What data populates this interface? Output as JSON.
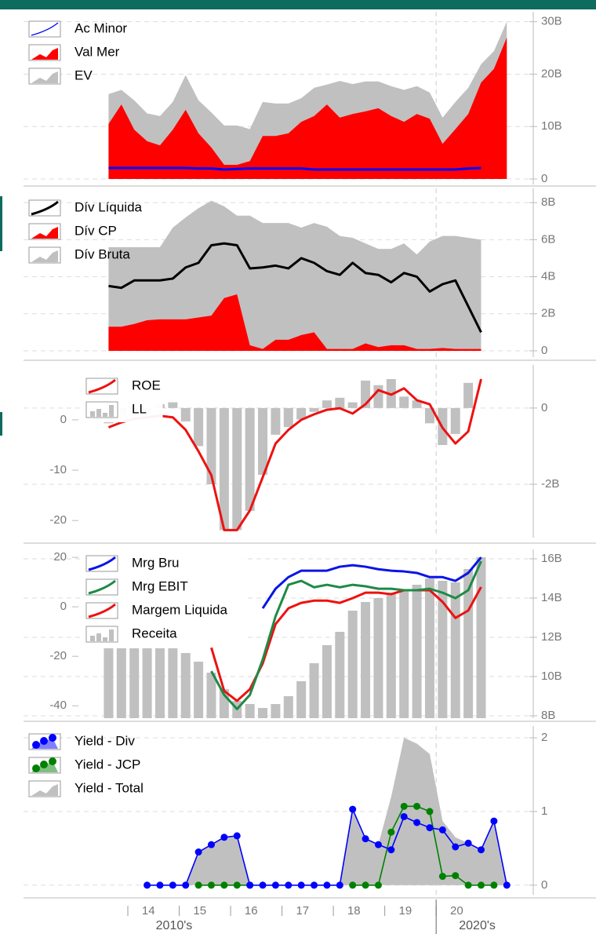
{
  "chart_data": {
    "type": "panels",
    "x": [
      2013.625,
      2013.875,
      2014.125,
      2014.375,
      2014.625,
      2014.875,
      2015.125,
      2015.375,
      2015.625,
      2015.875,
      2016.125,
      2016.375,
      2016.625,
      2016.875,
      2017.125,
      2017.375,
      2017.625,
      2017.875,
      2018.125,
      2018.375,
      2018.625,
      2018.875,
      2019.125,
      2019.375,
      2019.625,
      2019.875,
      2020.125,
      2020.375,
      2020.625,
      2020.875,
      2021.125,
      2021.375
    ],
    "xlim": [
      2011.97,
      2021.89
    ],
    "xticks": [
      {
        "value": 2014,
        "label": "14"
      },
      {
        "value": 2015,
        "label": "15"
      },
      {
        "value": 2016,
        "label": "16"
      },
      {
        "value": 2017,
        "label": "17"
      },
      {
        "value": 2018,
        "label": "18"
      },
      {
        "value": 2019,
        "label": "19"
      },
      {
        "value": 2020,
        "label": "20"
      }
    ],
    "decades": [
      {
        "value": 2014.9,
        "label": "2010's"
      },
      {
        "value": 2020.8,
        "label": "2020's"
      }
    ],
    "separator": 2020,
    "panels": [
      {
        "type": "area-line",
        "y2lim": [
          -1.05,
          31.9
        ],
        "y2ticks": [
          0,
          {
            "value": 10,
            "label": "10B"
          },
          {
            "value": 20,
            "label": "20B"
          },
          {
            "value": 30,
            "label": "30B"
          }
        ],
        "series": [
          {
            "name": "Ac Minor",
            "type": "line",
            "axis": "y2",
            "color": "#0000ff",
            "values": [
              2.1,
              2.1,
              2.1,
              2.1,
              2.1,
              2.1,
              2.1,
              2.0,
              2.0,
              1.8,
              1.9,
              2.0,
              2.0,
              2.0,
              2.0,
              2.0,
              1.8,
              1.8,
              1.8,
              1.8,
              1.8,
              1.8,
              1.8,
              1.8,
              1.8,
              1.8,
              1.8,
              1.8,
              2.0,
              2.1,
              null,
              null
            ]
          },
          {
            "name": "Val Mer",
            "type": "area",
            "axis": "y2",
            "color": "#ff0000",
            "values": [
              10.5,
              14.2,
              9.4,
              7.2,
              6.4,
              9.4,
              13.2,
              8.7,
              6,
              2.7,
              2.7,
              3.4,
              8.2,
              8.2,
              8.7,
              10.9,
              12,
              14.2,
              11.7,
              12.4,
              12.9,
              13.5,
              12,
              10.9,
              12.4,
              11.5,
              6.7,
              9.5,
              12.4,
              18.4,
              21,
              27
            ]
          },
          {
            "name": "EV",
            "type": "area",
            "axis": "y2",
            "color": "#c0c0c0",
            "values": [
              16.2,
              17,
              15,
              12.5,
              12,
              14.7,
              19.8,
              15,
              12.7,
              10.2,
              10.2,
              9.5,
              14.7,
              14.4,
              14.4,
              15.4,
              17.4,
              18,
              18.7,
              18.1,
              18.6,
              18.6,
              17.7,
              17,
              17.7,
              16.5,
              11.7,
              14.7,
              17.4,
              21.9,
              24.4,
              30
            ]
          }
        ]
      },
      {
        "type": "area-line",
        "y2lim": [
          -0.34,
          8.77
        ],
        "y2ticks": [
          0,
          {
            "value": 2,
            "label": "2B"
          },
          {
            "value": 4,
            "label": "4B"
          },
          {
            "value": 6,
            "label": "6B"
          },
          {
            "value": 8,
            "label": "8B"
          }
        ],
        "series": [
          {
            "name": "Dív Líquida",
            "type": "line",
            "axis": "y2",
            "color": "#000000",
            "values": [
              3.5,
              3.4,
              3.8,
              3.8,
              3.8,
              3.9,
              4.5,
              4.75,
              5.7,
              5.8,
              5.7,
              4.45,
              4.5,
              4.6,
              4.45,
              5.0,
              4.75,
              4.3,
              4.1,
              4.75,
              4.2,
              4.1,
              3.7,
              4.2,
              4.0,
              3.2,
              3.6,
              3.8,
              2.4,
              1.0,
              null,
              null
            ]
          },
          {
            "name": "Dív CP",
            "type": "area",
            "axis": "y2",
            "color": "#ff0000",
            "values": [
              1.3,
              1.3,
              1.45,
              1.65,
              1.7,
              1.7,
              1.7,
              1.8,
              1.9,
              2.85,
              3.05,
              0.3,
              0.1,
              0.6,
              0.6,
              0.85,
              1.0,
              0.1,
              0.1,
              0.1,
              0.4,
              0.2,
              0.3,
              0.3,
              0.1,
              0.1,
              0.15,
              0.1,
              0.1,
              0.1,
              null,
              null
            ]
          },
          {
            "name": "Dív Bruta",
            "type": "area",
            "axis": "y2",
            "color": "#c0c0c0",
            "values": [
              5.6,
              5.6,
              5.6,
              5.6,
              5.6,
              6.65,
              7.2,
              7.7,
              8.1,
              7.8,
              7.3,
              7.3,
              6.9,
              6.9,
              6.9,
              6.65,
              6.9,
              6.7,
              6.2,
              6.1,
              5.8,
              5.5,
              5.5,
              5.8,
              5.2,
              5.9,
              6.2,
              6.2,
              6.1,
              6.0,
              null,
              null
            ]
          }
        ]
      },
      {
        "type": "bar-line",
        "ylim": [
          -23.4,
          10.9
        ],
        "yticks": [
          0,
          -10,
          -20
        ],
        "y2lim": [
          -3.4,
          1.13
        ],
        "y2ticks": [
          0,
          {
            "value": -2,
            "label": "-2B"
          }
        ],
        "series": [
          {
            "name": "ROE",
            "type": "line",
            "axis": "y",
            "color": "#ee1111",
            "values": [
              -1.5,
              -0.5,
              0.2,
              0.5,
              0.8,
              0.5,
              -2,
              -6.25,
              -11,
              -21.9,
              -21.9,
              -18,
              -11.4,
              -4.7,
              -2,
              0,
              1.1,
              2,
              2.3,
              1.25,
              3.1,
              5.9,
              5,
              6.25,
              3.9,
              3.1,
              -1.6,
              -4.7,
              -2.3,
              8.1,
              null,
              null
            ]
          },
          {
            "name": "LL",
            "type": "bar",
            "axis": "y2",
            "color": "#c0c0c0",
            "values": [
              -0.4,
              -0.2,
              -0.2,
              -0.1,
              0.1,
              0.15,
              -0.35,
              -1.0,
              -2.0,
              -3.2,
              -3.2,
              -2.7,
              -1.75,
              -0.7,
              -0.5,
              -0.3,
              -0.1,
              0.2,
              0.27,
              0.15,
              0.72,
              0.6,
              0.76,
              0.3,
              0.2,
              -0.4,
              -0.97,
              -0.68,
              0.66,
              null,
              null,
              null
            ]
          }
        ]
      },
      {
        "type": "bar-line",
        "ylim": [
          -45,
          23.2
        ],
        "yticks": [
          20,
          0,
          -20,
          -40
        ],
        "y2lim": [
          7.88,
          16.48
        ],
        "y2ticks": [
          {
            "value": 16,
            "label": "16B"
          },
          {
            "value": 14,
            "label": "14B"
          },
          {
            "value": 12,
            "label": "12B"
          },
          {
            "value": 10,
            "label": "10B"
          },
          {
            "value": 8,
            "label": "8B"
          }
        ],
        "series": [
          {
            "name": "Mrg Bru",
            "type": "line",
            "axis": "y",
            "color": "#0a14e6",
            "values": [
              null,
              null,
              null,
              null,
              null,
              null,
              null,
              null,
              null,
              null,
              null,
              null,
              -0.6,
              7.3,
              12,
              14.6,
              14.6,
              14.6,
              16.2,
              16.8,
              16.2,
              15.2,
              14.6,
              14.3,
              13.7,
              12,
              12,
              10.5,
              13.7,
              20,
              null,
              null
            ]
          },
          {
            "name": "Mrg EBIT",
            "type": "line",
            "axis": "y",
            "color": "#1e8a46",
            "values": [
              null,
              null,
              null,
              null,
              null,
              null,
              null,
              null,
              -26,
              -35.6,
              -41.3,
              -35.6,
              -21.3,
              -3.8,
              8.9,
              10.5,
              7.9,
              8.9,
              7.9,
              8.9,
              8.3,
              7.3,
              7.3,
              6.7,
              6.7,
              7.3,
              5.7,
              3.5,
              6.7,
              18.4,
              null,
              null
            ]
          },
          {
            "name": "Margem Liquida",
            "type": "line",
            "axis": "y",
            "color": "#ee1111",
            "values": [
              null,
              null,
              null,
              null,
              null,
              null,
              null,
              null,
              -16.5,
              -34,
              -38,
              -33.3,
              -22.9,
              -7,
              -0.6,
              1.6,
              2.5,
              2.5,
              1.6,
              3.5,
              5.7,
              5.7,
              5.1,
              6.7,
              6.7,
              6.7,
              2,
              -4.5,
              -1.5,
              8,
              null,
              null
            ]
          },
          {
            "name": "Receita",
            "type": "bar",
            "axis": "y2",
            "color": "#c0c0c0",
            "values": [
              11.44,
              11.44,
              11.44,
              11.44,
              11.44,
              11.44,
              11.2,
              10.76,
              10.2,
              9.36,
              8.76,
              8.6,
              8.4,
              8.6,
              9.0,
              9.76,
              10.68,
              11.6,
              12.28,
              13.36,
              13.8,
              14.0,
              14.28,
              14.36,
              14.68,
              15.0,
              14.88,
              14.8,
              15.48,
              16.08,
              null,
              null
            ]
          }
        ]
      },
      {
        "type": "points-area",
        "y2lim": [
          -0.13,
          2.16
        ],
        "y2ticks": [
          0,
          1,
          2
        ],
        "series": [
          {
            "name": "Yield - Div",
            "type": "points",
            "axis": "y2",
            "color": "#0000ff",
            "values": [
              null,
              null,
              null,
              0,
              0,
              0,
              0,
              0.45,
              0.55,
              0.65,
              0.67,
              0,
              0,
              0,
              0,
              0,
              0,
              0,
              0,
              1.03,
              0.63,
              0.55,
              0.48,
              0.93,
              0.85,
              0.78,
              0.75,
              0.52,
              0.57,
              0.48,
              0.87,
              0
            ]
          },
          {
            "name": "Yield - JCP",
            "type": "points",
            "axis": "y2",
            "color": "#008000",
            "values": [
              null,
              null,
              null,
              null,
              null,
              null,
              null,
              0,
              0,
              0,
              0,
              0,
              null,
              null,
              null,
              null,
              null,
              null,
              null,
              0,
              0,
              0,
              0.72,
              1.07,
              1.07,
              1.0,
              0.12,
              0.13,
              0,
              0,
              0,
              null
            ]
          },
          {
            "name": "Yield - Total",
            "type": "area",
            "axis": "y2",
            "color": "#c0c0c0",
            "values": [
              null,
              null,
              null,
              0,
              0,
              0,
              0,
              0.45,
              0.55,
              0.65,
              0.67,
              0,
              0,
              0,
              0,
              0,
              0,
              0,
              0,
              1.03,
              0.63,
              0.55,
              1.2,
              2.0,
              1.92,
              1.78,
              0.87,
              0.65,
              0.57,
              0.48,
              0.87,
              0
            ]
          }
        ]
      }
    ]
  }
}
